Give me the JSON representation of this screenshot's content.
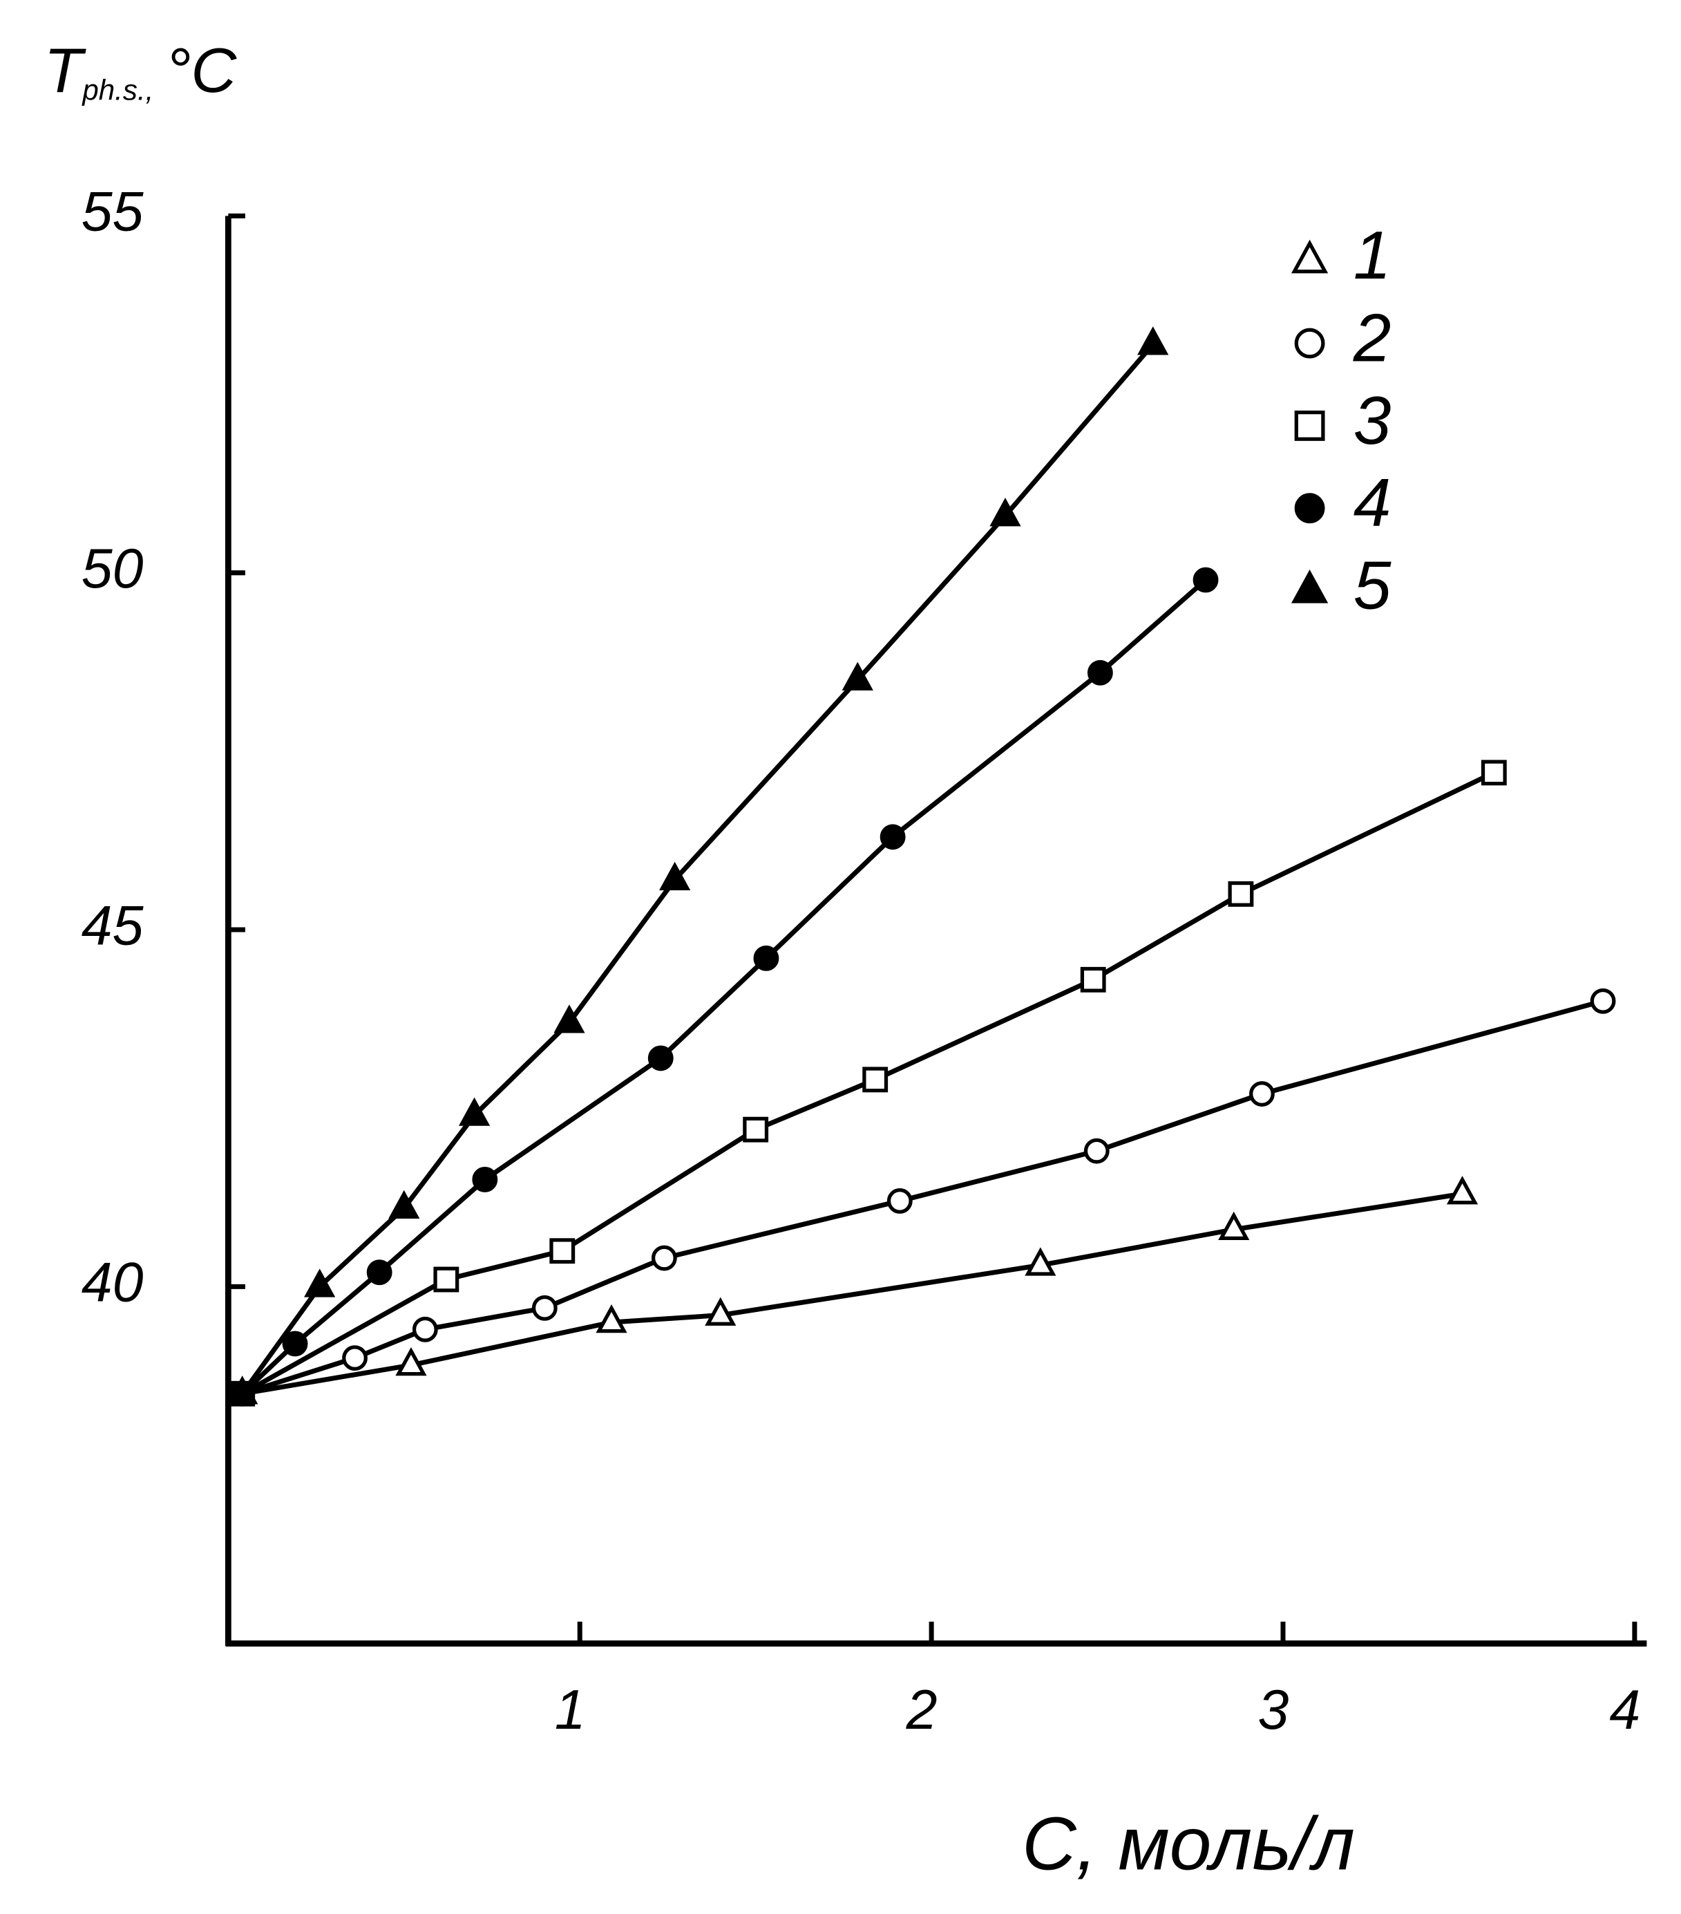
{
  "chart_data": {
    "type": "line",
    "ylabel": {
      "main": "T",
      "sub": "ph.s.,",
      "unit": "°C"
    },
    "xlabel": "C, моль/л",
    "xlim": [
      0,
      4
    ],
    "xticks": [
      1,
      2,
      3,
      4
    ],
    "ylim": [
      35,
      55
    ],
    "yticks": [
      40,
      45,
      50,
      55
    ],
    "grid": false,
    "legend": "top-right",
    "series": [
      {
        "name": "1",
        "color": "#000000",
        "marker": "triangle-open",
        "x": [
          0.04,
          0.52,
          1.09,
          1.4,
          2.31,
          2.86,
          3.51
        ],
        "values": [
          38.5,
          38.9,
          39.5,
          39.6,
          40.3,
          40.8,
          41.3
        ]
      },
      {
        "name": "2",
        "color": "#000000",
        "marker": "circle-open",
        "x": [
          0.04,
          0.36,
          0.56,
          0.9,
          1.24,
          1.91,
          2.47,
          2.94,
          3.91
        ],
        "values": [
          38.5,
          39.0,
          39.4,
          39.7,
          40.4,
          41.2,
          41.9,
          42.7,
          44.0
        ]
      },
      {
        "name": "3",
        "color": "#000000",
        "marker": "square-open",
        "x": [
          0.04,
          0.62,
          0.95,
          1.5,
          1.84,
          2.46,
          2.88,
          3.6
        ],
        "values": [
          38.5,
          40.1,
          40.5,
          42.2,
          42.9,
          44.3,
          45.5,
          47.2
        ]
      },
      {
        "name": "4",
        "color": "#000000",
        "marker": "circle",
        "x": [
          0.04,
          0.19,
          0.43,
          0.73,
          1.23,
          1.53,
          1.89,
          2.48,
          2.78
        ],
        "values": [
          38.5,
          39.2,
          40.2,
          41.5,
          43.2,
          44.6,
          46.3,
          48.6,
          49.9
        ]
      },
      {
        "name": "5",
        "color": "#000000",
        "marker": "triangle",
        "x": [
          0.04,
          0.26,
          0.5,
          0.7,
          0.97,
          1.27,
          1.79,
          2.21,
          2.63
        ],
        "values": [
          38.5,
          40.0,
          41.1,
          42.4,
          43.7,
          45.7,
          48.5,
          50.8,
          53.2
        ]
      }
    ]
  }
}
